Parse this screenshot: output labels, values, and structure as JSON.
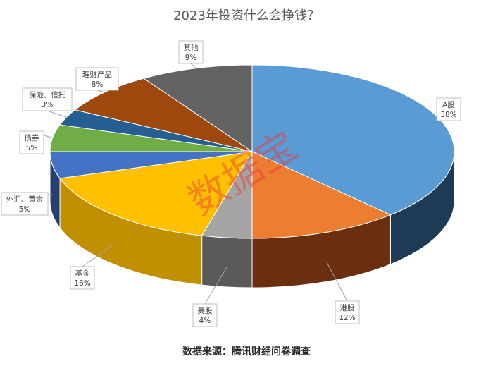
{
  "chart_data": {
    "type": "pie",
    "title": "2023年投资什么会挣钱？",
    "slices": [
      {
        "label": "A股",
        "value": 38,
        "pct_label": "38%",
        "color": "#5B9BD5",
        "side": "#1F3A55"
      },
      {
        "label": "港股",
        "value": 12,
        "pct_label": "12%",
        "color": "#ED7D31",
        "side": "#6B2F0F"
      },
      {
        "label": "美股",
        "value": 4,
        "pct_label": "4%",
        "color": "#A5A5A5",
        "side": "#5A5A5A"
      },
      {
        "label": "基金",
        "value": 16,
        "pct_label": "16%",
        "color": "#FFC000",
        "side": "#C09000"
      },
      {
        "label": "外汇、黄金",
        "value": 5,
        "pct_label": "5%",
        "color": "#4472C4",
        "side": "#23406F"
      },
      {
        "label": "债券",
        "value": 5,
        "pct_label": "5%",
        "color": "#70AD47",
        "side": "#3D6A22"
      },
      {
        "label": "保险、信托",
        "value": 3,
        "pct_label": "3%",
        "color": "#255E91",
        "side": "#12304A"
      },
      {
        "label": "理财产品",
        "value": 8,
        "pct_label": "8%",
        "color": "#9E480E",
        "side": "#5A2806"
      },
      {
        "label": "其他",
        "value": 9,
        "pct_label": "9%",
        "color": "#636363",
        "side": "#3A3A3A"
      }
    ],
    "legend": "none"
  },
  "watermark": "数据宝",
  "source": "数据来源：腾讯财经问卷调查"
}
